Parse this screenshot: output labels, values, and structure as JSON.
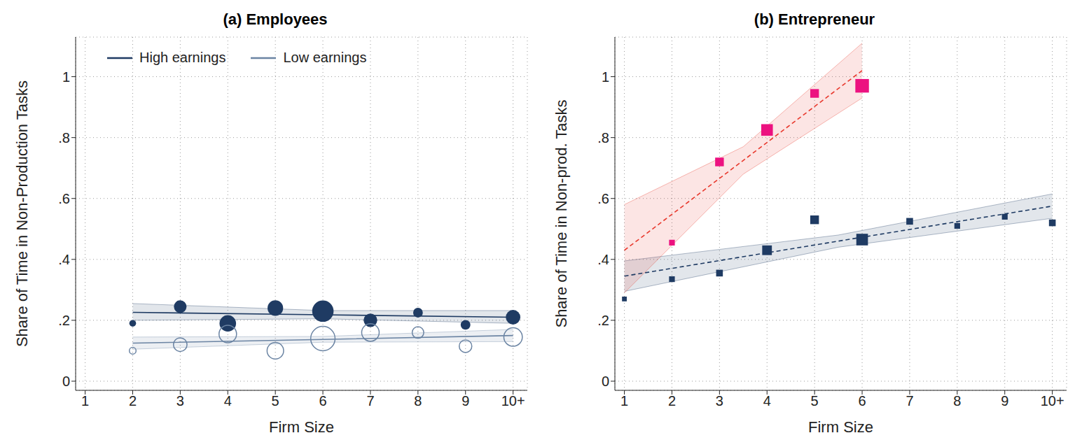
{
  "chart_data": [
    {
      "type": "scatter",
      "title": "(a) Employees",
      "x_label": "Firm Size",
      "y_label": "Share of Time in Non-Production Tasks",
      "xlim": [
        0.8,
        10.3
      ],
      "xticks": [
        1,
        2,
        3,
        4,
        5,
        6,
        7,
        8,
        9,
        {
          "value": 10,
          "label": "10+"
        }
      ],
      "ylim": [
        -0.03,
        1.13
      ],
      "yticks": [
        0,
        {
          "value": 0.2,
          "label": ".2"
        },
        {
          "value": 0.4,
          "label": ".4"
        },
        {
          "value": 0.6,
          "label": ".6"
        },
        {
          "value": 0.8,
          "label": ".8"
        },
        1
      ],
      "grid": true,
      "legend": "upper left",
      "series": [
        {
          "name": "High earnings",
          "color": "#1f3b63",
          "marker": "circle",
          "line_style": "solid",
          "x": [
            2,
            3,
            4,
            5,
            6,
            7,
            8,
            9,
            10
          ],
          "values": [
            0.19,
            0.245,
            0.19,
            0.24,
            0.23,
            0.2,
            0.225,
            0.185,
            0.21
          ],
          "sizes": [
            2,
            5,
            7,
            6.5,
            9.5,
            5.5,
            3.5,
            3.5,
            6
          ],
          "fit": {
            "x": [
              2,
              6,
              10
            ],
            "values": [
              0.226,
              0.218,
              0.21
            ],
            "lower": [
              0.2,
              0.205,
              0.19
            ],
            "upper": [
              0.255,
              0.232,
              0.232
            ]
          }
        },
        {
          "name": "Low earnings",
          "color": "#6b84a3",
          "marker": "circle_open",
          "line_style": "solid",
          "x": [
            2,
            3,
            4,
            5,
            6,
            7,
            8,
            9,
            10
          ],
          "values": [
            0.1,
            0.12,
            0.155,
            0.1,
            0.14,
            0.16,
            0.16,
            0.115,
            0.145
          ],
          "sizes": [
            2,
            5.5,
            7.5,
            7,
            11,
            7.5,
            4.5,
            5,
            8
          ],
          "fit": {
            "x": [
              2,
              6,
              10
            ],
            "values": [
              0.125,
              0.137,
              0.15
            ],
            "lower": [
              0.105,
              0.128,
              0.13
            ],
            "upper": [
              0.145,
              0.147,
              0.17
            ]
          }
        }
      ]
    },
    {
      "type": "scatter",
      "title": "(b) Entrepreneur",
      "x_label": "Firm Size",
      "y_label": "Share of Time in Non-prod. Tasks",
      "xlim": [
        0.8,
        10.3
      ],
      "xticks": [
        1,
        2,
        3,
        4,
        5,
        6,
        7,
        8,
        9,
        {
          "value": 10,
          "label": "10+"
        }
      ],
      "ylim": [
        -0.03,
        1.13
      ],
      "yticks": [
        0,
        {
          "value": 0.2,
          "label": ".2"
        },
        {
          "value": 0.4,
          "label": ".4"
        },
        {
          "value": 0.6,
          "label": ".6"
        },
        {
          "value": 0.8,
          "label": ".8"
        },
        1
      ],
      "grid": true,
      "series": [
        {
          "color": "#1f3b63",
          "marker": "square",
          "line_style": "dashed",
          "x": [
            1,
            2,
            3,
            4,
            5,
            6,
            7,
            8,
            9,
            10
          ],
          "values": [
            0.27,
            0.335,
            0.355,
            0.43,
            0.53,
            0.465,
            0.525,
            0.51,
            0.54,
            0.52
          ],
          "sizes": [
            1,
            1.5,
            2,
            3.5,
            3,
            4.5,
            2,
            1.5,
            1.5,
            2
          ],
          "fit": {
            "x": [
              1,
              5.5,
              10
            ],
            "values": [
              0.345,
              0.46,
              0.575
            ],
            "lower": [
              0.295,
              0.44,
              0.535
            ],
            "upper": [
              0.395,
              0.48,
              0.615
            ]
          }
        },
        {
          "color": "#ec1280",
          "marker": "square",
          "line_style": "dashed",
          "x": [
            2,
            3,
            4,
            5,
            6
          ],
          "values": [
            0.455,
            0.72,
            0.825,
            0.945,
            0.97
          ],
          "sizes": [
            1.5,
            3,
            4.5,
            3,
            5.5
          ],
          "fit": {
            "color": "#e8382c",
            "x": [
              1,
              3.5,
              6
            ],
            "values": [
              0.43,
              0.725,
              1.02
            ],
            "lower": [
              0.29,
              0.68,
              0.93
            ],
            "upper": [
              0.58,
              0.77,
              1.11
            ]
          }
        }
      ]
    }
  ]
}
